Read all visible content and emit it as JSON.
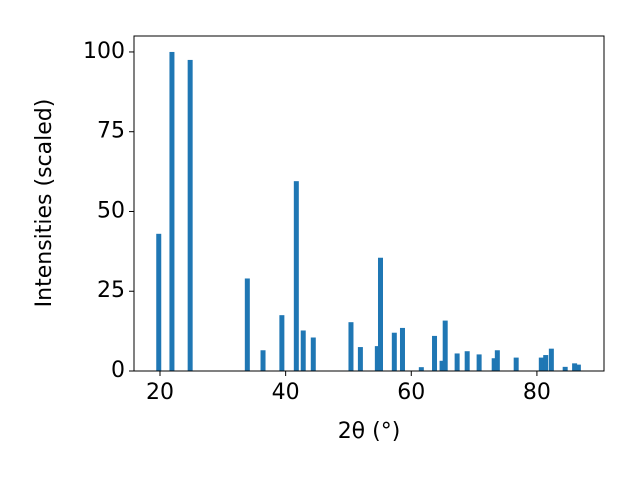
{
  "chart_data": {
    "type": "bar",
    "xlabel": "2θ (°)",
    "ylabel": "Intensities (scaled)",
    "color": "#1f77b4",
    "x": [
      19.8,
      21.9,
      24.8,
      33.9,
      36.4,
      39.4,
      41.7,
      42.8,
      44.4,
      50.4,
      51.9,
      54.6,
      55.1,
      57.3,
      58.6,
      61.6,
      63.7,
      64.9,
      65.4,
      67.3,
      68.9,
      70.8,
      73.2,
      73.7,
      76.7,
      80.7,
      81.4,
      82.3,
      84.5,
      86.0,
      86.6
    ],
    "values": [
      43,
      100,
      97.5,
      29,
      6.5,
      17.5,
      59.5,
      12.7,
      10.5,
      15.3,
      7.5,
      7.8,
      35.5,
      12,
      13.5,
      1.2,
      11,
      3.2,
      15.8,
      5.5,
      6.2,
      5.2,
      4,
      6.5,
      4.2,
      4.2,
      5,
      7,
      1.3,
      2.4,
      2
    ],
    "xlim": [
      15.86,
      90.68
    ],
    "ylim": [
      0,
      105
    ],
    "xticks": [
      20,
      40,
      60,
      80
    ],
    "yticks": [
      0,
      25,
      50,
      75,
      100
    ]
  }
}
